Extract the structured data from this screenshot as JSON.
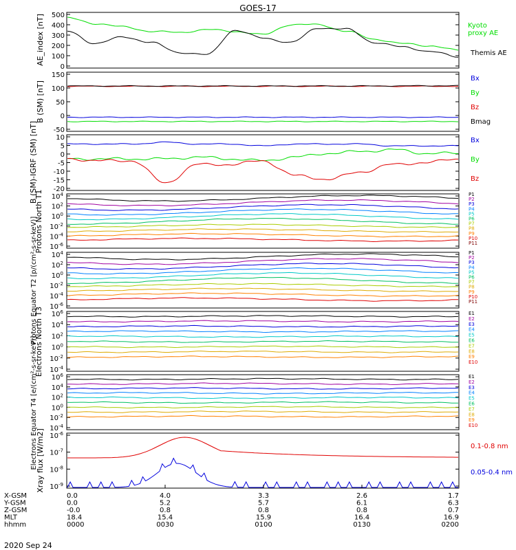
{
  "title": "GOES-17",
  "date": "2020 Sep 24",
  "colors": {
    "black": "#000000",
    "green": "#00dd00",
    "red": "#e00000",
    "blue": "#0000dd",
    "darkred": "#800000"
  },
  "chart_data": [
    {
      "type": "line",
      "ylabel": "AE_index [nT]",
      "yticks": [
        "500",
        "400",
        "300",
        "200",
        "100",
        "0"
      ],
      "ylim": [
        0,
        500
      ],
      "x": [
        0,
        0.5,
        1,
        1.5,
        2
      ],
      "series": [
        {
          "name": "Kyoto proxy AE",
          "color": "#00dd00",
          "values": [
            450,
            330,
            360,
            395,
            160
          ]
        },
        {
          "name": "Themis AE",
          "color": "#000000",
          "values": [
            330,
            120,
            340,
            360,
            100
          ]
        }
      ]
    },
    {
      "type": "line",
      "ylabel": "B (SM) [nT]",
      "yticks": [
        "150",
        "100",
        "50",
        "0",
        "-50"
      ],
      "ylim": [
        -60,
        150
      ],
      "series": [
        {
          "name": "Bx",
          "color": "#0000dd",
          "values": [
            -10,
            -10,
            -10,
            -10,
            -10
          ]
        },
        {
          "name": "By",
          "color": "#00dd00",
          "values": [
            -25,
            -25,
            -25,
            -25,
            -25
          ]
        },
        {
          "name": "Bz",
          "color": "#e00000",
          "values": [
            100,
            100,
            100,
            100,
            100
          ]
        },
        {
          "name": "Bmag",
          "color": "#000000",
          "values": [
            101,
            101,
            101,
            101,
            102
          ]
        }
      ]
    },
    {
      "type": "line",
      "ylabel": "B (SM)-IGRF (SM) [nT]",
      "yticks": [
        "10",
        "5",
        "0",
        "-5",
        "-10",
        "-15",
        "-20"
      ],
      "ylim": [
        -20,
        10
      ],
      "series": [
        {
          "name": "Bx",
          "color": "#0000dd",
          "values": [
            5,
            5,
            4,
            5,
            4
          ]
        },
        {
          "name": "By",
          "color": "#00dd00",
          "values": [
            -3,
            -3,
            -2,
            0,
            0
          ]
        },
        {
          "name": "Bz",
          "color": "#e00000",
          "values": [
            -3,
            -16,
            -8,
            -12,
            -3
          ]
        }
      ]
    },
    {
      "type": "line",
      "ylabel": "Protons North T1",
      "yticks": [
        "10^4",
        "10^2",
        "10^0",
        "10^-2",
        "10^-4",
        "10^-6"
      ],
      "series_names": [
        "P1",
        "P2",
        "P3",
        "P4",
        "P5",
        "P6",
        "P7",
        "P8",
        "P9",
        "P10",
        "P11"
      ]
    },
    {
      "type": "line",
      "ylabel": "Protons Equator T2 [p/(cm²-s-sr-keV)]",
      "yticks": [
        "10^4",
        "10^2",
        "10^0",
        "10^-2",
        "10^-4",
        "10^-6"
      ],
      "series_names": [
        "P1",
        "P2",
        "P3",
        "P4",
        "P5",
        "P6",
        "P7",
        "P8",
        "P9",
        "P10",
        "P11"
      ]
    },
    {
      "type": "line",
      "ylabel": "Electrons North T3",
      "yticks": [
        "10^6",
        "10^4",
        "10^2",
        "10^0",
        "10^-2",
        "10^-4"
      ],
      "series_names": [
        "E1",
        "E2",
        "E3",
        "E4",
        "E5",
        "E6",
        "E7",
        "E8",
        "E9",
        "E10"
      ]
    },
    {
      "type": "line",
      "ylabel": "Electrons Equator T4 [e/(cm²-s-sr-keV)]",
      "yticks": [
        "10^6",
        "10^4",
        "10^2",
        "10^0",
        "10^-2",
        "10^-4"
      ],
      "series_names": [
        "E1",
        "E2",
        "E3",
        "E4",
        "E5",
        "E6",
        "E7",
        "E8",
        "E9",
        "E10"
      ]
    },
    {
      "type": "line",
      "ylabel": "Xray flux [W/m2]",
      "yticks": [
        "10^-6",
        "10^-7",
        "10^-8",
        "10^-9"
      ],
      "series": [
        {
          "name": "0.1-0.8 nm",
          "color": "#e00000"
        },
        {
          "name": "0.05-0.4 nm",
          "color": "#0000dd"
        }
      ]
    }
  ],
  "xaxis": {
    "row_labels": [
      "X-GSM",
      "Y-GSM",
      "Z-GSM",
      "MLT",
      "hhmm"
    ],
    "columns": [
      [
        "0.0",
        "0.0",
        "-0.0",
        "18.4",
        "0000"
      ],
      [
        "4.0",
        "5.2",
        "0.8",
        "15.4",
        "0030"
      ],
      [
        "3.3",
        "5.7",
        "0.8",
        "15.9",
        "0100"
      ],
      [
        "2.6",
        "6.1",
        "0.8",
        "16.4",
        "0130"
      ],
      [
        "1.7",
        "6.3",
        "0.7",
        "16.9",
        "0200"
      ]
    ]
  }
}
